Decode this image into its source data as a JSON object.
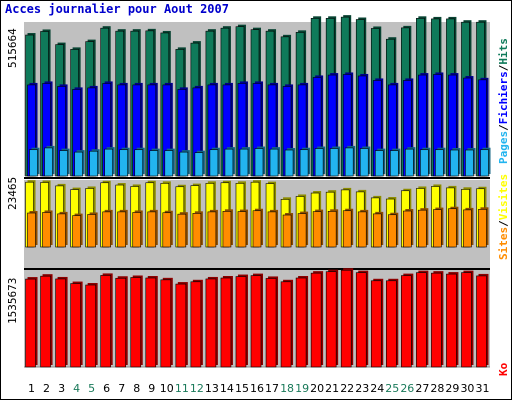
{
  "title": "Acces journalier pour Aout 2007",
  "colors": {
    "hits": "#0f7a5a",
    "fichiers": "#0000ff",
    "pages": "#22b4ef",
    "visites": "#ffff00",
    "sites": "#ff8c00",
    "ko": "#ff0000",
    "panel_bg": "#c0c0c0",
    "weekday_label": "#000000",
    "weekend_label": "#1a7a5a",
    "separator": "#000000"
  },
  "chart_data": [
    {
      "type": "bar",
      "panel": "hits-fichiers-pages",
      "ylabel": "515664",
      "ylim": [
        0,
        515664
      ],
      "right_labels": [
        "Pages",
        "/",
        "Fichiers",
        "/",
        "Hits"
      ],
      "x": [
        "1",
        "2",
        "3",
        "4",
        "5",
        "6",
        "7",
        "8",
        "9",
        "10",
        "11",
        "12",
        "13",
        "14",
        "15",
        "16",
        "17",
        "18",
        "19",
        "20",
        "21",
        "22",
        "23",
        "24",
        "25",
        "26",
        "27",
        "28",
        "29",
        "30",
        "31"
      ],
      "series": [
        {
          "name": "Hits",
          "values": [
            472000,
            484000,
            440000,
            424000,
            450000,
            495000,
            485000,
            485000,
            486000,
            479000,
            424000,
            445000,
            485000,
            495000,
            500000,
            490000,
            485000,
            466000,
            481000,
            528000,
            528000,
            532000,
            524000,
            494000,
            458000,
            496000,
            528000,
            526000,
            526000,
            515000,
            515000
          ]
        },
        {
          "name": "Fichiers",
          "values": [
            305000,
            310000,
            300000,
            290000,
            295000,
            310000,
            305000,
            305000,
            305000,
            305000,
            290000,
            295000,
            305000,
            305000,
            310000,
            310000,
            305000,
            300000,
            305000,
            330000,
            338000,
            340000,
            335000,
            320000,
            305000,
            320000,
            338000,
            340000,
            338000,
            328000,
            322000
          ]
        },
        {
          "name": "Pages",
          "values": [
            88000,
            94000,
            85000,
            80000,
            83000,
            90000,
            88000,
            88000,
            85000,
            85000,
            80000,
            78000,
            88000,
            90000,
            90000,
            92000,
            90000,
            87000,
            88000,
            92000,
            92000,
            94000,
            92000,
            85000,
            85000,
            90000,
            88000,
            88000,
            87000,
            87000,
            88000
          ]
        }
      ]
    },
    {
      "type": "bar",
      "panel": "visites-sites",
      "ylabel": "23465",
      "ylim": [
        0,
        23465
      ],
      "right_labels": [
        "Sites",
        "/",
        "Visites"
      ],
      "x": [
        "1",
        "2",
        "3",
        "4",
        "5",
        "6",
        "7",
        "8",
        "9",
        "10",
        "11",
        "12",
        "13",
        "14",
        "15",
        "16",
        "17",
        "18",
        "19",
        "20",
        "21",
        "22",
        "23",
        "24",
        "25",
        "26",
        "27",
        "28",
        "29",
        "30",
        "31"
      ],
      "series": [
        {
          "name": "Visites",
          "values": [
            22700,
            22600,
            21400,
            20100,
            20500,
            22500,
            21700,
            21200,
            22500,
            22300,
            21100,
            21500,
            22300,
            22500,
            22300,
            22700,
            22200,
            16700,
            17700,
            18900,
            19200,
            20000,
            19300,
            17200,
            16800,
            19700,
            20500,
            21200,
            20700,
            20200,
            20400
          ]
        },
        {
          "name": "Sites",
          "values": [
            11900,
            12100,
            11600,
            11000,
            11400,
            12300,
            12300,
            12100,
            12300,
            12000,
            11500,
            11800,
            12300,
            12500,
            12400,
            12700,
            12300,
            11200,
            11700,
            12400,
            12500,
            12700,
            12300,
            11600,
            11300,
            12600,
            12900,
            13100,
            13400,
            13000,
            13200
          ]
        }
      ]
    },
    {
      "type": "bar",
      "panel": "ko",
      "ylabel": "1535673",
      "ylim": [
        0,
        1535673
      ],
      "right_labels": [
        "Ko"
      ],
      "x": [
        "1",
        "2",
        "3",
        "4",
        "5",
        "6",
        "7",
        "8",
        "9",
        "10",
        "11",
        "12",
        "13",
        "14",
        "15",
        "16",
        "17",
        "18",
        "19",
        "20",
        "21",
        "22",
        "23",
        "24",
        "25",
        "26",
        "27",
        "28",
        "29",
        "30",
        "31"
      ],
      "series": [
        {
          "name": "Ko",
          "values": [
            1392000,
            1438000,
            1394000,
            1321000,
            1298000,
            1450000,
            1405000,
            1417000,
            1409000,
            1380000,
            1313000,
            1349000,
            1394000,
            1409000,
            1432000,
            1447000,
            1402000,
            1349000,
            1409000,
            1486000,
            1509000,
            1532000,
            1494000,
            1365000,
            1365000,
            1447000,
            1494000,
            1486000,
            1471000,
            1494000,
            1442000
          ]
        }
      ]
    }
  ],
  "days": [
    "1",
    "2",
    "3",
    "4",
    "5",
    "6",
    "7",
    "8",
    "9",
    "10",
    "11",
    "12",
    "13",
    "14",
    "15",
    "16",
    "17",
    "18",
    "19",
    "20",
    "21",
    "22",
    "23",
    "24",
    "25",
    "26",
    "27",
    "28",
    "29",
    "30",
    "31"
  ],
  "weekend_days": [
    4,
    5,
    11,
    12,
    18,
    19,
    25,
    26
  ]
}
